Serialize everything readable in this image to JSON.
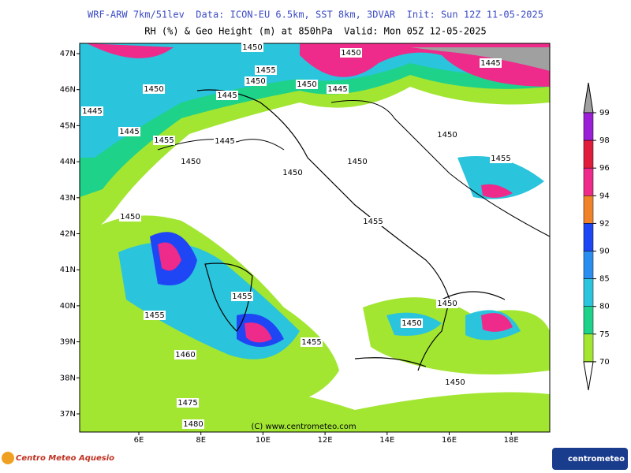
{
  "header": {
    "line1": "WRF-ARW 7km/51lev  Data: ICON-EU 6.5km, SST 8km, 3DVAR  Init: Sun 12Z 11-05-2025",
    "line2": "RH (%) & Geo Height (m) at 850hPa  Valid: Mon 05Z 12-05-2025"
  },
  "map": {
    "latitudes": [
      "47N",
      "46N",
      "45N",
      "44N",
      "43N",
      "42N",
      "41N",
      "40N",
      "39N",
      "38N",
      "37N"
    ],
    "longitudes": [
      "6E",
      "8E",
      "10E",
      "12E",
      "14E",
      "16E",
      "18E"
    ],
    "contour_labels": [
      "1450",
      "1450",
      "1445",
      "1455",
      "1450",
      "1450",
      "1450",
      "1445",
      "1445",
      "1445",
      "1445",
      "1455",
      "1445",
      "1450",
      "1450",
      "1450",
      "1450",
      "1455",
      "1450",
      "1455",
      "1455",
      "1450",
      "1455",
      "1450",
      "1455",
      "1460",
      "1450",
      "1475",
      "1480"
    ],
    "copyright": "(C) www.centrometeo.com"
  },
  "colorbar": {
    "ticks": [
      99,
      98,
      96,
      94,
      92,
      90,
      85,
      80,
      75,
      70
    ],
    "colors": [
      "#9b1fd6",
      "#e01e3c",
      "#ee2a8a",
      "#f0822a",
      "#1e46f5",
      "#2a8ef0",
      "#2ac4dc",
      "#1ed28a",
      "#a2e632"
    ]
  },
  "footer": {
    "left_logo": "Centro Meteo Aquesio",
    "right_logo": "centrometeo"
  }
}
